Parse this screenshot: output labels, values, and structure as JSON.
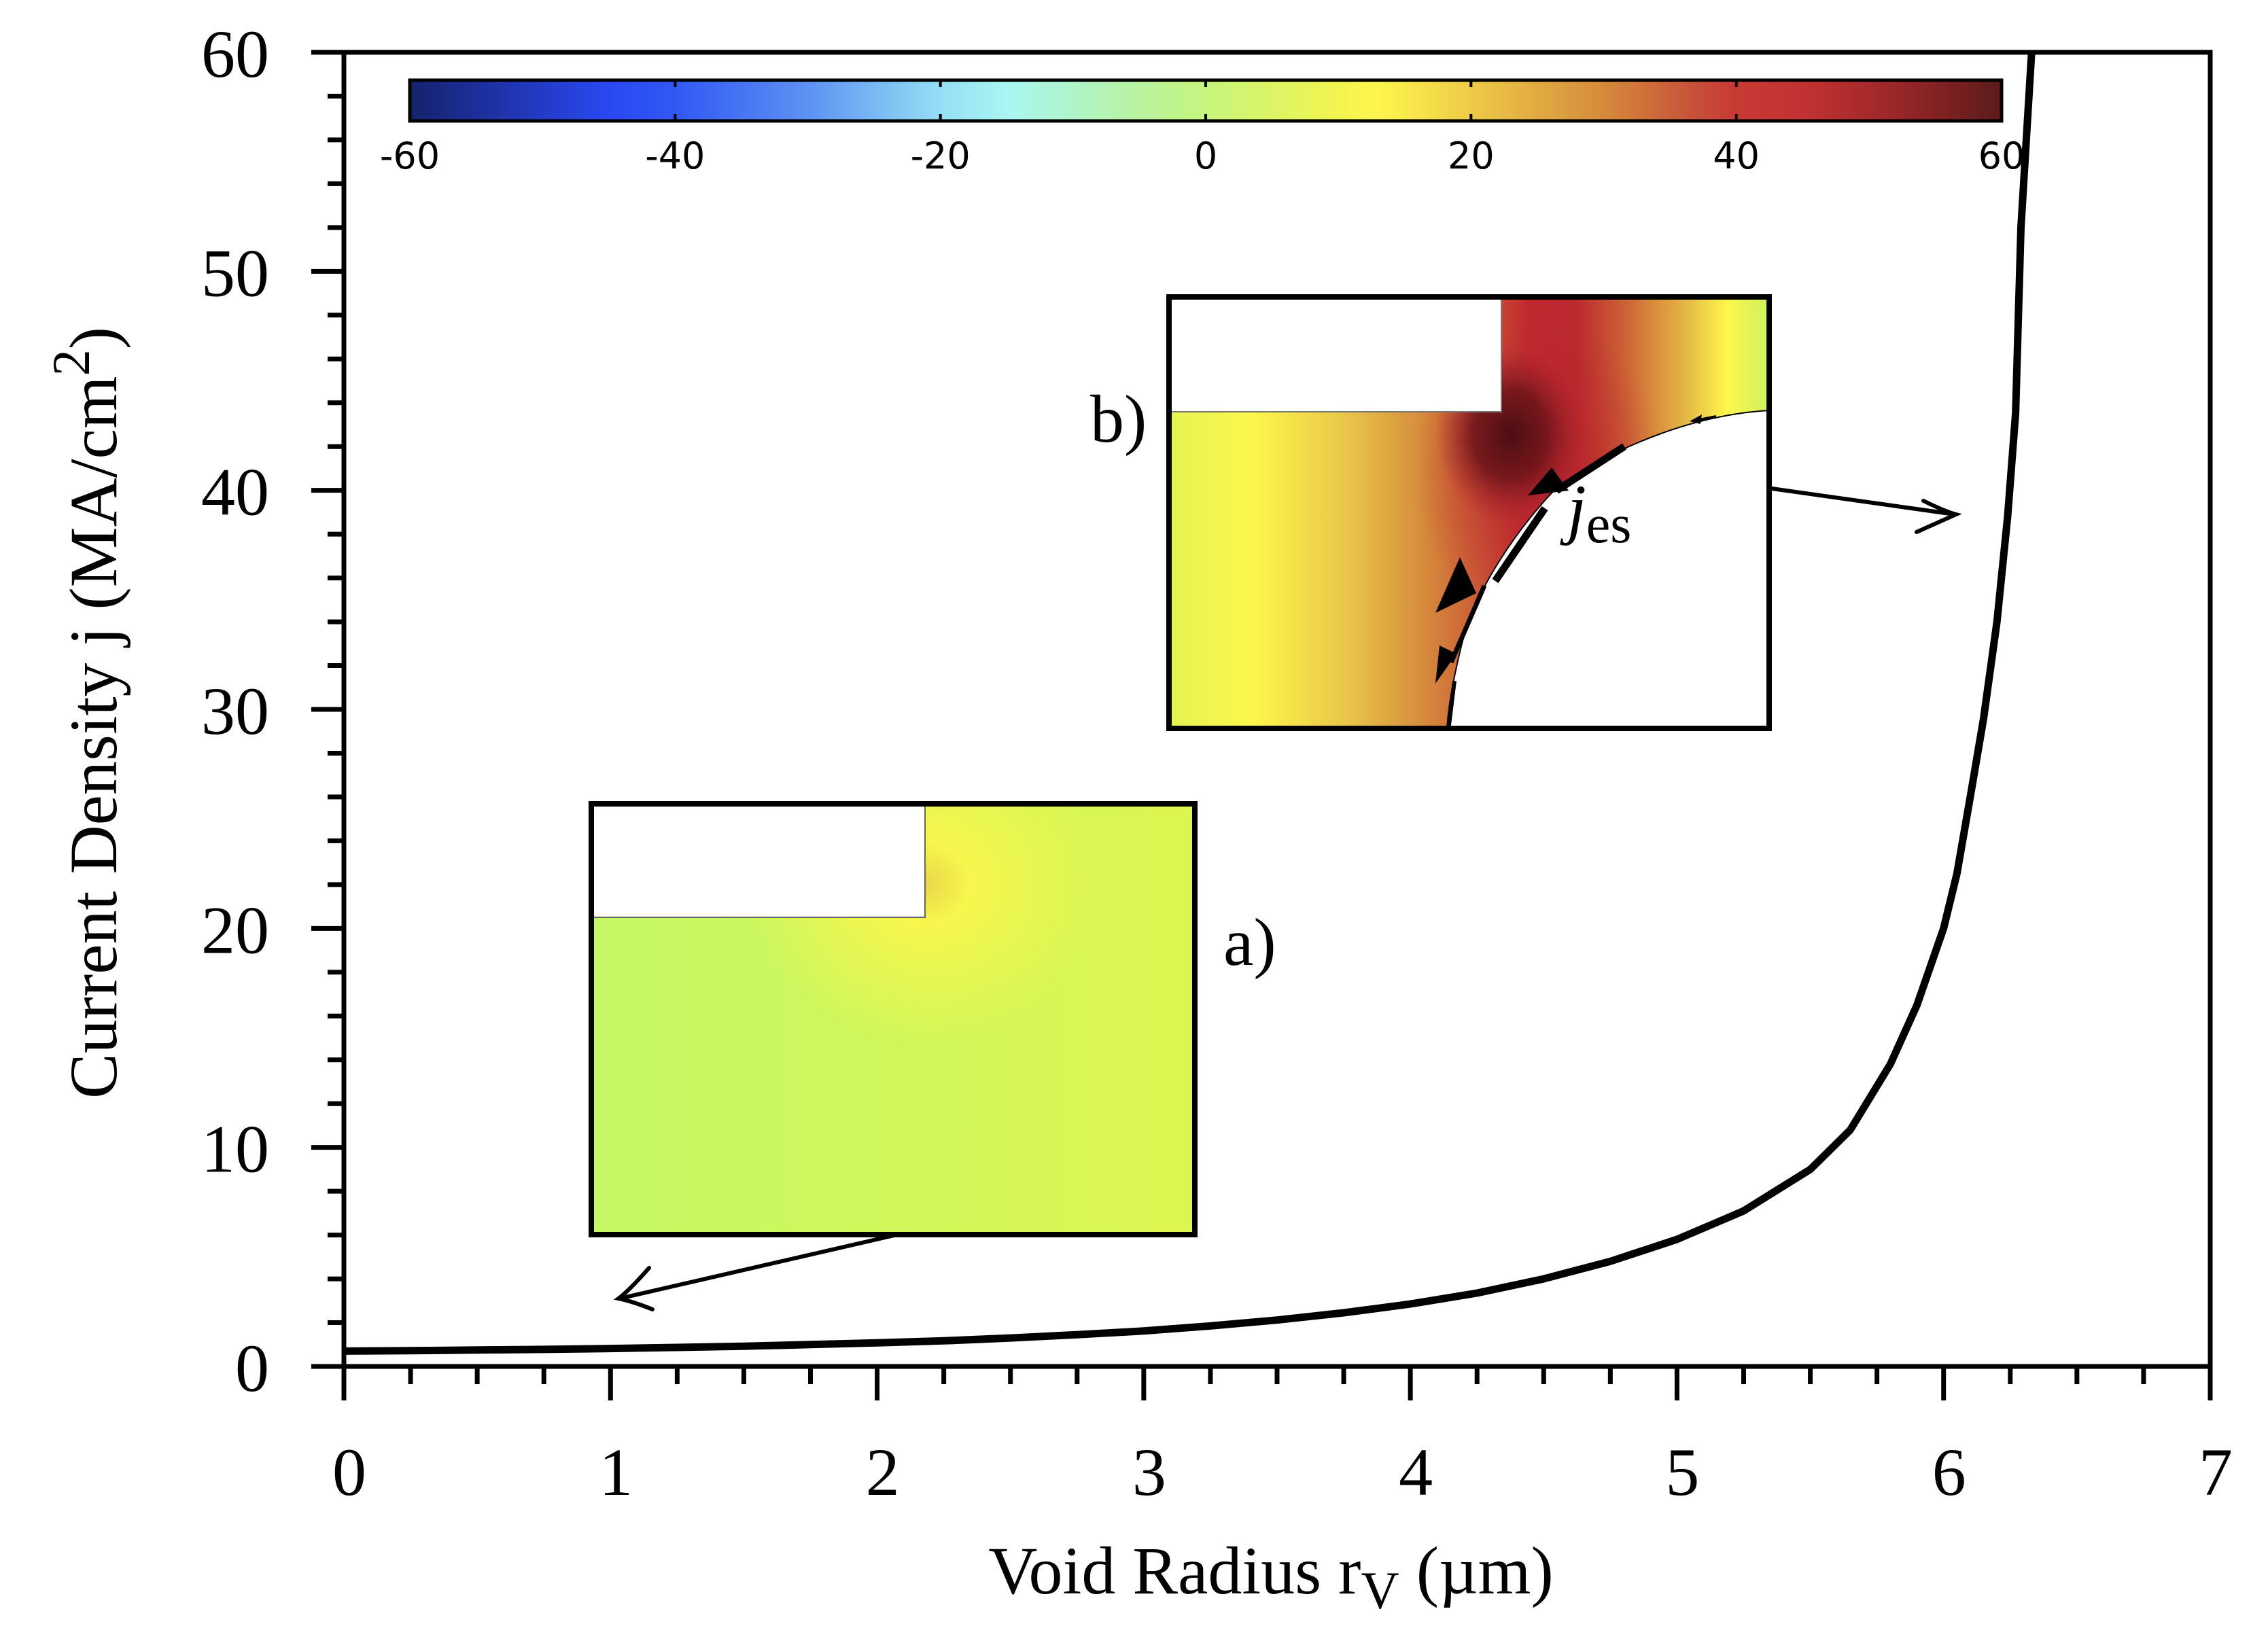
{
  "chart_data": {
    "type": "line",
    "title": "",
    "xlabel": {
      "main": "Void Radius r",
      "subscript": "V",
      "unit": " (µm)"
    },
    "ylabel": {
      "main": "Current Density j (MA/cm",
      "superscript": "2",
      "close": ")"
    },
    "xlim": [
      0,
      7
    ],
    "ylim": [
      0,
      60
    ],
    "grid": false,
    "x_ticks": [
      "0",
      "1",
      "2",
      "3",
      "4",
      "5",
      "6",
      "7"
    ],
    "y_ticks": [
      "0",
      "10",
      "20",
      "30",
      "40",
      "50",
      "60"
    ],
    "x_minor_step": 0.25,
    "y_minor_step": 2,
    "series": [
      {
        "name": "Current Density j",
        "color": "#000000",
        "x": [
          0,
          0.25,
          0.5,
          0.75,
          1,
          1.25,
          1.5,
          1.75,
          2,
          2.25,
          2.5,
          2.75,
          3,
          3.25,
          3.5,
          3.75,
          4,
          4.25,
          4.5,
          4.75,
          5,
          5.25,
          5.5,
          5.65,
          5.8,
          5.9,
          6.0,
          6.05,
          6.1,
          6.15,
          6.2,
          6.24,
          6.27,
          6.29,
          6.33
        ],
        "y": [
          0.7,
          0.72,
          0.75,
          0.78,
          0.82,
          0.87,
          0.92,
          1.0,
          1.08,
          1.17,
          1.3,
          1.45,
          1.62,
          1.85,
          2.12,
          2.45,
          2.85,
          3.35,
          4.0,
          4.8,
          5.8,
          7.1,
          9.0,
          10.8,
          13.8,
          16.5,
          20.0,
          22.5,
          26.0,
          29.6,
          34.0,
          38.8,
          43.5,
          52.0,
          60.0
        ]
      }
    ],
    "colorbar": {
      "range": [
        -60,
        60
      ],
      "tick_labels": [
        "-60",
        "-40",
        "-20",
        "0",
        "20",
        "40",
        "60"
      ],
      "placement": "top",
      "stops": [
        {
          "value": -60,
          "color": "#15226c"
        },
        {
          "value": -45,
          "color": "#2a48f2"
        },
        {
          "value": -40,
          "color": "#3158f4"
        },
        {
          "value": -30,
          "color": "#5c92f2"
        },
        {
          "value": -20,
          "color": "#94dff5"
        },
        {
          "value": -15,
          "color": "#a8f6f2"
        },
        {
          "value": -5,
          "color": "#b8f3a0"
        },
        {
          "value": 0,
          "color": "#c6f57c"
        },
        {
          "value": 10,
          "color": "#f2f450"
        },
        {
          "value": 13,
          "color": "#fdf64e"
        },
        {
          "value": 20,
          "color": "#efca48"
        },
        {
          "value": 30,
          "color": "#d58a3b"
        },
        {
          "value": 37,
          "color": "#c6503a"
        },
        {
          "value": 40,
          "color": "#c83a34"
        },
        {
          "value": 45,
          "color": "#c33232"
        },
        {
          "value": 52,
          "color": "#9a2729"
        },
        {
          "value": 60,
          "color": "#5c1a1a"
        }
      ]
    },
    "annotations": [
      {
        "id": "a",
        "label": "a)",
        "points_to": {
          "x": 1.0,
          "y": 3.0
        }
      },
      {
        "id": "b",
        "label": "b)",
        "points_to": {
          "x": 6.0,
          "y": 39.0
        },
        "vector_label": {
          "main": "j",
          "subscript": "es"
        }
      }
    ]
  }
}
